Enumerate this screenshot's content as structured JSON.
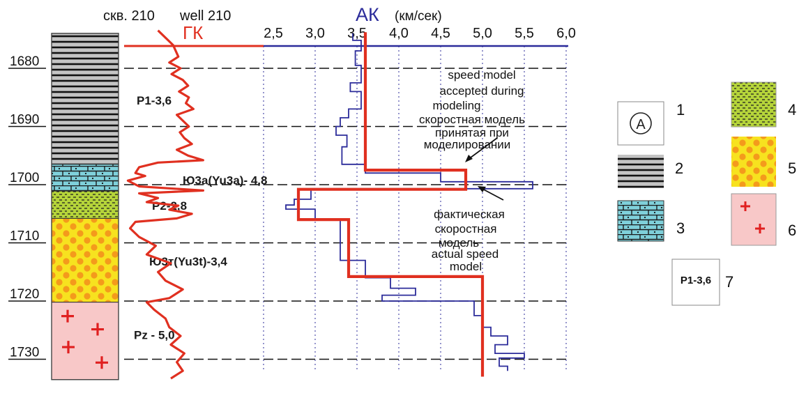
{
  "header": {
    "well_ru": "скв. 210",
    "well_en": "well 210",
    "gk_label": "ГК",
    "ak_label": "АК",
    "ak_units": "(км/сек)"
  },
  "colors": {
    "gk": "#e03020",
    "ak": "#2b2b9a",
    "model": "#e03020",
    "shale": "#bdbdbd",
    "carbonate": "#7fd0da",
    "siltstone": "#b5d43a",
    "sandstone_bg": "#f7e21f",
    "sandstone_dot": "#f49a1c",
    "basement": "#f8c8c8",
    "basement_cross": "#e02020"
  },
  "chart_data": {
    "type": "line",
    "xlabel": "АК (км/сек)",
    "x_ticks": [
      "2,5",
      "3,0",
      "3,5",
      "4,0",
      "4,5",
      "5,0",
      "5,5",
      "6,0"
    ],
    "xlim": [
      2.5,
      6.0
    ],
    "depth_ticks": [
      "1680",
      "1690",
      "1700",
      "1710",
      "1720",
      "1730"
    ],
    "ylim": [
      1674,
      1733
    ],
    "grid": true,
    "series": [
      {
        "name": "ГК",
        "points": [
          [
            1673.5,
            2.45
          ],
          [
            1676,
            2.65
          ],
          [
            1678,
            2.72
          ],
          [
            1679,
            2.6
          ],
          [
            1680,
            2.75
          ],
          [
            1681,
            2.63
          ],
          [
            1682,
            2.78
          ],
          [
            1683,
            2.85
          ],
          [
            1684,
            2.73
          ],
          [
            1685,
            2.86
          ],
          [
            1686,
            2.82
          ],
          [
            1687,
            2.92
          ],
          [
            1688,
            2.7
          ],
          [
            1689,
            2.78
          ],
          [
            1690,
            2.86
          ],
          [
            1691,
            2.74
          ],
          [
            1692,
            2.8
          ],
          [
            1693,
            2.9
          ],
          [
            1694,
            2.7
          ],
          [
            1695,
            2.85
          ],
          [
            1695.8,
            3.05
          ],
          [
            1696.2,
            2.45
          ],
          [
            1697,
            2.2
          ],
          [
            1698,
            2.15
          ],
          [
            1698.5,
            2.28
          ],
          [
            1699.3,
            2.05
          ],
          [
            1700.3,
            2.2
          ],
          [
            1701.0,
            3.05
          ],
          [
            1701.5,
            2.2
          ],
          [
            1702.3,
            2.45
          ],
          [
            1703.0,
            2.3
          ],
          [
            1703.6,
            2.72
          ],
          [
            1704.3,
            2.6
          ],
          [
            1705.0,
            2.9
          ],
          [
            1705.8,
            2.7
          ],
          [
            1706.4,
            2.15
          ],
          [
            1707.5,
            2.08
          ],
          [
            1709,
            2.2
          ],
          [
            1710.5,
            2.42
          ],
          [
            1712,
            2.3
          ],
          [
            1713.5,
            2.62
          ],
          [
            1715,
            2.45
          ],
          [
            1716.5,
            2.55
          ],
          [
            1718,
            2.78
          ],
          [
            1719.5,
            2.6
          ],
          [
            1720.2,
            2.3
          ],
          [
            1721.5,
            2.4
          ],
          [
            1723,
            2.55
          ],
          [
            1724.5,
            2.6
          ],
          [
            1726,
            2.75
          ],
          [
            1727.5,
            2.62
          ],
          [
            1729,
            2.8
          ],
          [
            1730.5,
            2.7
          ],
          [
            1732,
            2.78
          ],
          [
            1733.3,
            2.62
          ]
        ]
      },
      {
        "name": "АК",
        "points": [
          [
            1674,
            3.45
          ],
          [
            1675.2,
            3.45
          ],
          [
            1675.2,
            3.55
          ],
          [
            1677,
            3.55
          ],
          [
            1677,
            3.48
          ],
          [
            1679.5,
            3.48
          ],
          [
            1679.5,
            3.55
          ],
          [
            1682.5,
            3.55
          ],
          [
            1682.5,
            3.42
          ],
          [
            1684,
            3.42
          ],
          [
            1684,
            3.55
          ],
          [
            1687,
            3.55
          ],
          [
            1687,
            3.4
          ],
          [
            1688.5,
            3.4
          ],
          [
            1688.5,
            3.3
          ],
          [
            1690,
            3.3
          ],
          [
            1690,
            3.25
          ],
          [
            1691.5,
            3.25
          ],
          [
            1691.5,
            3.38
          ],
          [
            1693.5,
            3.38
          ],
          [
            1693.5,
            3.32
          ],
          [
            1696.5,
            3.32
          ],
          [
            1696.5,
            3.6
          ],
          [
            1698,
            3.6
          ],
          [
            1698,
            4.5
          ],
          [
            1699.5,
            4.5
          ],
          [
            1699.5,
            5.6
          ],
          [
            1700.7,
            5.6
          ],
          [
            1700.7,
            2.95
          ],
          [
            1702.5,
            2.95
          ],
          [
            1702.5,
            2.75
          ],
          [
            1703.5,
            2.75
          ],
          [
            1703.5,
            2.65
          ],
          [
            1704.2,
            2.65
          ],
          [
            1704.2,
            3.0
          ],
          [
            1706,
            3.0
          ],
          [
            1706,
            3.3
          ],
          [
            1713,
            3.3
          ],
          [
            1713,
            3.6
          ],
          [
            1716,
            3.6
          ],
          [
            1716,
            3.9
          ],
          [
            1717.8,
            3.9
          ],
          [
            1717.8,
            4.2
          ],
          [
            1719,
            4.2
          ],
          [
            1719,
            3.8
          ],
          [
            1720,
            3.8
          ],
          [
            1720,
            4.9
          ],
          [
            1722.5,
            4.9
          ],
          [
            1722.5,
            5.0
          ],
          [
            1724.5,
            5.0
          ],
          [
            1724.5,
            5.1
          ],
          [
            1726,
            5.1
          ],
          [
            1726,
            5.3
          ],
          [
            1727.5,
            5.3
          ],
          [
            1727.5,
            5.15
          ],
          [
            1729,
            5.15
          ],
          [
            1729,
            5.5
          ],
          [
            1729.8,
            5.5
          ],
          [
            1729.8,
            5.2
          ],
          [
            1731.2,
            5.2
          ],
          [
            1731.2,
            5.3
          ],
          [
            1732,
            5.3
          ]
        ]
      },
      {
        "name": "model",
        "points": [
          [
            1673.8,
            3.6
          ],
          [
            1697.5,
            3.6
          ],
          [
            1697.5,
            4.8
          ],
          [
            1700.8,
            4.8
          ],
          [
            1700.8,
            2.8
          ],
          [
            1706,
            2.8
          ],
          [
            1706,
            3.4
          ],
          [
            1715.8,
            3.4
          ],
          [
            1715.8,
            5.0
          ],
          [
            1733,
            5.0
          ]
        ]
      }
    ]
  },
  "layers": [
    {
      "name": "shale",
      "top": 1674,
      "bottom": 1696.5,
      "label": "P1-3,6",
      "label_depth": 1685.5
    },
    {
      "name": "carbonate",
      "top": 1696.5,
      "bottom": 1701.1,
      "label": "Ю3а(Yu3a)- 4,8",
      "label_depth": 1699.2
    },
    {
      "name": "siltstone",
      "top": 1701.1,
      "bottom": 1705.8,
      "label": "P2-2,8",
      "label_depth": 1703.6
    },
    {
      "name": "sandstone",
      "top": 1705.8,
      "bottom": 1720.2,
      "label": "Ю3т(Yu3t)-3,4",
      "label_depth": 1713.2
    },
    {
      "name": "basement",
      "top": 1720.2,
      "bottom": 1733.5,
      "label": "Pz - 5,0",
      "label_depth": 1725.8
    }
  ],
  "annotations": {
    "model_en": [
      "speed model",
      "accepted during",
      "modeling"
    ],
    "model_ru": [
      "скоростная модель",
      "принятая при",
      "моделировании"
    ],
    "actual_ru": [
      "фактическая",
      "скоростная",
      "модель"
    ],
    "actual_en": [
      "actual  speed",
      "model"
    ]
  },
  "legend": {
    "n1": "1",
    "n2": "2",
    "n3": "3",
    "n4": "4",
    "n5": "5",
    "n6": "6",
    "n7": "7",
    "symbol_a": "A",
    "unit_sample": "P1-3,6"
  }
}
